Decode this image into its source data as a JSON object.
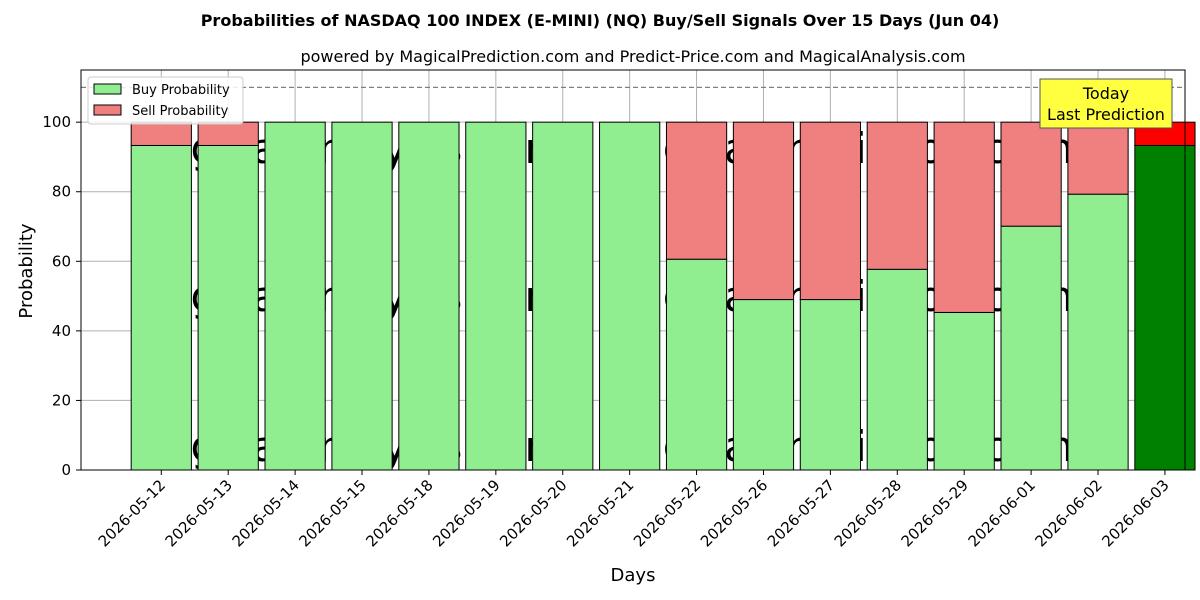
{
  "chart_data": {
    "type": "bar",
    "stacked": true,
    "title": "Probabilities of NASDAQ 100 INDEX (E-MINI) (NQ) Buy/Sell Signals Over 15 Days (Jun 04)",
    "subtitle": "powered by MagicalPrediction.com and Predict-Price.com and MagicalAnalysis.com",
    "xlabel": "Days",
    "ylabel": "Probability",
    "ylim": [
      0,
      115
    ],
    "yticks": [
      0,
      20,
      40,
      60,
      80,
      100
    ],
    "grid": true,
    "legend_position": "top-left",
    "reference_line": 110,
    "categories": [
      "2026-05-12",
      "2026-05-13",
      "2026-05-14",
      "2026-05-15",
      "2026-05-18",
      "2026-05-19",
      "2026-05-20",
      "2026-05-21",
      "2026-05-22",
      "2026-05-26",
      "2026-05-27",
      "2026-05-28",
      "2026-05-29",
      "2026-06-01",
      "2026-06-02",
      "2026-06-03"
    ],
    "series": [
      {
        "name": "Buy Probability",
        "color": "#90ee90",
        "highlight_color": "#008000",
        "values": [
          93.3,
          93.3,
          100,
          100,
          100,
          100,
          100,
          100,
          60.6,
          49.0,
          49.0,
          57.7,
          45.3,
          70.1,
          79.3,
          93.3
        ]
      },
      {
        "name": "Sell Probability",
        "color": "#f08080",
        "highlight_color": "#ff0000",
        "values": [
          6.7,
          6.7,
          0,
          0,
          0,
          0,
          0,
          0,
          39.4,
          51.0,
          51.0,
          42.3,
          54.7,
          29.9,
          20.7,
          6.7
        ]
      }
    ],
    "highlight_index": 15,
    "annotation": {
      "line1": "Today",
      "line2": "Last Prediction",
      "background": "#ffff40"
    },
    "watermarks": [
      "MagicalAnalysis.com",
      "MagicalPrediction.com"
    ]
  }
}
